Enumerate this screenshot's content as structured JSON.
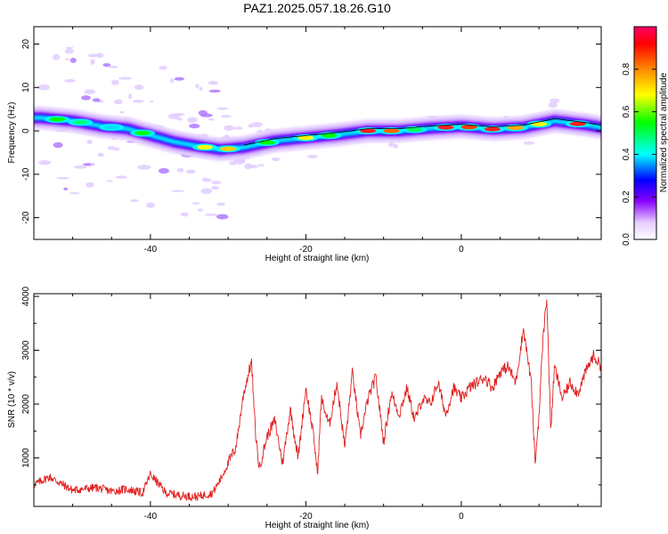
{
  "chart_data": [
    {
      "type": "heatmap",
      "title": "PAZ1.2025.057.18.26.G10",
      "xlabel": "Height of straight line (km)",
      "ylabel": "Frequency (Hz)",
      "xlim": [
        -55,
        18
      ],
      "ylim": [
        -25,
        24
      ],
      "x_ticks": [
        -40,
        -20,
        0
      ],
      "x_tick_labels": [
        "-40",
        "-20",
        "0"
      ],
      "y_ticks": [
        -20,
        -10,
        0,
        10,
        20
      ],
      "y_tick_labels": [
        "-20",
        "-10",
        "0",
        "10",
        "20"
      ],
      "colorbar": {
        "label": "Normalized spectral amplitude",
        "range": [
          0,
          1
        ],
        "ticks": [
          0.0,
          0.2,
          0.4,
          0.6,
          0.8
        ],
        "tick_labels": [
          "0.0",
          "0.2",
          "0.4",
          "0.6",
          "0.8"
        ],
        "colors": [
          "#ffffff",
          "#d9b3ff",
          "#8800ff",
          "#0000ff",
          "#00ffff",
          "#00ff00",
          "#ffff00",
          "#ff8800",
          "#ff0000",
          "#ff0066"
        ]
      },
      "ridge": {
        "x": [
          -54,
          -50,
          -46,
          -43,
          -40,
          -37,
          -34,
          -31,
          -28,
          -24,
          -20,
          -16,
          -12,
          -8,
          -4,
          0,
          4,
          8,
          12,
          16,
          18
        ],
        "frequency": [
          3,
          2.3,
          1,
          0.5,
          -1,
          -2.5,
          -3.5,
          -4.3,
          -3.8,
          -2.3,
          -1.6,
          -0.9,
          0,
          0,
          0.6,
          1,
          0.4,
          0.8,
          2.3,
          1.4,
          0.8
        ]
      }
    },
    {
      "type": "line",
      "xlabel": "Height of straight line (km)",
      "ylabel": "SNR (10 * v/v)",
      "xlim": [
        -55,
        18
      ],
      "ylim": [
        100,
        4050
      ],
      "x_ticks": [
        -40,
        -20,
        0
      ],
      "x_tick_labels": [
        "-40",
        "-20",
        "0"
      ],
      "y_ticks": [
        1000,
        2000,
        3000,
        4000
      ],
      "y_tick_labels": [
        "1000",
        "2000",
        "3000",
        "4000"
      ],
      "color": "#e02020",
      "series": [
        {
          "x": [
            -55,
            -53,
            -50,
            -47,
            -45,
            -43,
            -41,
            -40,
            -38,
            -36,
            -34,
            -32,
            -31,
            -30,
            -29,
            -28,
            -27,
            -26.5,
            -26,
            -25,
            -24,
            -23,
            -22,
            -21,
            -20,
            -19,
            -18.5,
            -18,
            -17,
            -16,
            -15,
            -14,
            -13,
            -12,
            -11,
            -10,
            -9,
            -8,
            -7,
            -6,
            -5,
            -4,
            -3,
            -2,
            -1,
            0,
            1,
            2,
            3,
            4,
            5,
            6,
            7,
            8,
            9,
            9.5,
            10,
            10.5,
            11,
            11.5,
            12,
            13,
            14,
            15,
            16,
            17,
            18
          ],
          "y": [
            500,
            650,
            400,
            450,
            380,
            420,
            350,
            700,
            350,
            300,
            280,
            350,
            600,
            900,
            1200,
            2200,
            2800,
            1500,
            800,
            1400,
            1700,
            900,
            1900,
            1000,
            2300,
            1400,
            700,
            2100,
            1600,
            2400,
            1200,
            2600,
            1400,
            2100,
            2500,
            1300,
            2200,
            1800,
            2300,
            1700,
            2100,
            2000,
            2400,
            1800,
            2300,
            2100,
            2300,
            2400,
            2500,
            2300,
            2600,
            2700,
            2400,
            3400,
            2400,
            900,
            1800,
            3200,
            4000,
            1500,
            2700,
            2100,
            2400,
            2200,
            2600,
            2900,
            2700
          ]
        }
      ]
    }
  ]
}
